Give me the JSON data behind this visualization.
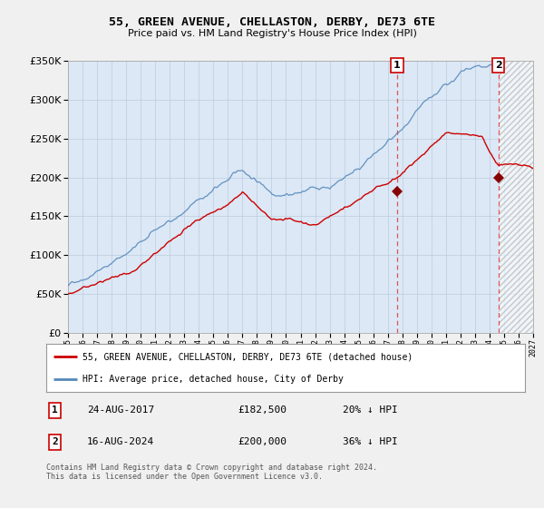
{
  "title": "55, GREEN AVENUE, CHELLASTON, DERBY, DE73 6TE",
  "subtitle": "Price paid vs. HM Land Registry's House Price Index (HPI)",
  "legend_line1": "55, GREEN AVENUE, CHELLASTON, DERBY, DE73 6TE (detached house)",
  "legend_line2": "HPI: Average price, detached house, City of Derby",
  "annotation1_num": "1",
  "annotation1_date": "24-AUG-2017",
  "annotation1_price": "£182,500",
  "annotation1_hpi": "20% ↓ HPI",
  "annotation2_num": "2",
  "annotation2_date": "16-AUG-2024",
  "annotation2_price": "£200,000",
  "annotation2_hpi": "36% ↓ HPI",
  "footnote": "Contains HM Land Registry data © Crown copyright and database right 2024.\nThis data is licensed under the Open Government Licence v3.0.",
  "sale1_year": 2017.64,
  "sale2_year": 2024.62,
  "sale1_price": 182500,
  "sale2_price": 200000,
  "ylim": [
    0,
    350000
  ],
  "xlim": [
    1995,
    2027
  ],
  "red_color": "#cc0000",
  "blue_color": "#5588bb",
  "background_color": "#dce8f5",
  "dashed_color": "#dd4444",
  "marker_color": "#880000"
}
